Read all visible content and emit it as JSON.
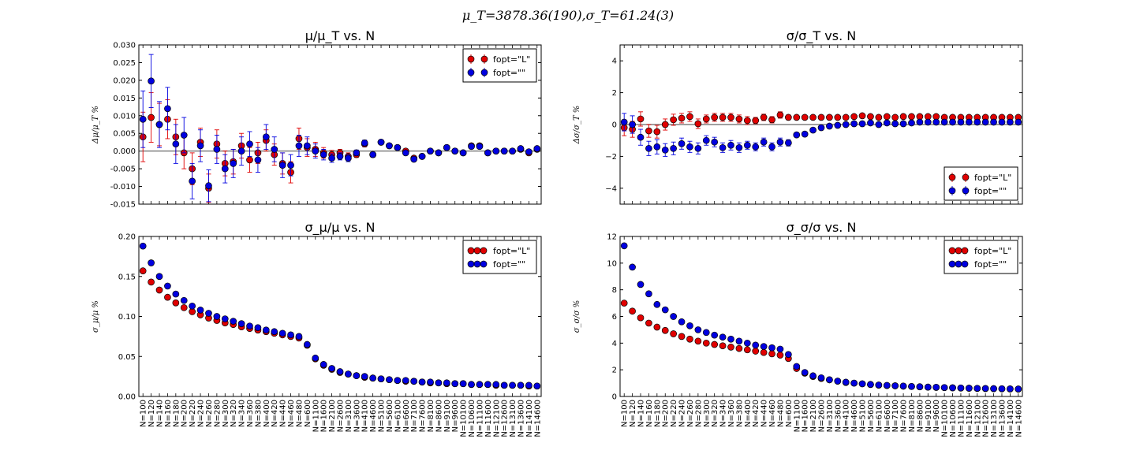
{
  "suptitle": "μ_T=3878.36(190),σ_T=61.24(3)",
  "legend_labels": {
    "L": "fopt=\"L\"",
    "E": "fopt=\"\""
  },
  "colors": {
    "L": "#e00000",
    "E": "#0000e0",
    "ref_line": "#808080"
  },
  "categories": [
    "N=100",
    "N=120",
    "N=140",
    "N=160",
    "N=180",
    "N=200",
    "N=220",
    "N=240",
    "N=260",
    "N=280",
    "N=300",
    "N=320",
    "N=340",
    "N=360",
    "N=380",
    "N=400",
    "N=420",
    "N=440",
    "N=460",
    "N=480",
    "N=600",
    "N=1100",
    "N=1600",
    "N=2100",
    "N=2600",
    "N=3100",
    "N=3600",
    "N=4100",
    "N=4600",
    "N=5100",
    "N=5600",
    "N=6100",
    "N=6600",
    "N=7100",
    "N=7600",
    "N=8100",
    "N=8600",
    "N=9100",
    "N=9600",
    "N=10100",
    "N=10600",
    "N=11100",
    "N=11600",
    "N=12100",
    "N=12600",
    "N=13100",
    "N=13600",
    "N=14100",
    "N=14600"
  ],
  "chart_data": [
    {
      "type": "scatter",
      "title": "μ/μ_T vs. N",
      "ylabel": "Δμ/μ_T %",
      "ylim": [
        -0.015,
        0.03
      ],
      "yticks": [
        "-0.015",
        "-0.010",
        "-0.005",
        "0.000",
        "0.005",
        "0.010",
        "0.015",
        "0.020",
        "0.025",
        "0.030"
      ],
      "hline": 0,
      "legend": "top-right",
      "series": [
        {
          "name": "fopt=\"L\"",
          "values": [
            0.004,
            0.0095,
            0.0075,
            0.009,
            0.004,
            -0.0005,
            -0.005,
            0.0025,
            -0.0105,
            0.002,
            -0.0035,
            -0.003,
            0.0015,
            -0.0025,
            -0.0005,
            0.003,
            -0.001,
            -0.0035,
            -0.006,
            0.0035,
            0.001,
            0.0005,
            -0.0005,
            -0.001,
            -0.0005,
            -0.0015,
            -0.001,
            0.002,
            -0.001,
            0.0025,
            0.0015,
            0.001,
            0.0,
            -0.002,
            -0.0015,
            0.0,
            -0.0005,
            0.001,
            0.0,
            -0.0005,
            0.0015,
            0.0015,
            -0.0005,
            0.0,
            0.0,
            0.0,
            0.0005,
            -0.0005,
            0.0005
          ],
          "errors": [
            0.007,
            0.007,
            0.006,
            0.0055,
            0.005,
            0.0045,
            0.0045,
            0.004,
            0.004,
            0.004,
            0.0035,
            0.0035,
            0.0035,
            0.0035,
            0.003,
            0.003,
            0.003,
            0.003,
            0.003,
            0.003,
            0.0025,
            0.002,
            0.0015,
            0.0012,
            0.001,
            0.001,
            0.0008,
            0.0008,
            0.0007,
            0.0007,
            0.0006,
            0.0006,
            0.0006,
            0.0005,
            0.0005,
            0.0005,
            0.0005,
            0.0004,
            0.0004,
            0.0004,
            0.0004,
            0.0004,
            0.0004,
            0.0004,
            0.0004,
            0.0003,
            0.0003,
            0.0003,
            0.0003
          ]
        },
        {
          "name": "fopt=\"\"",
          "values": [
            0.009,
            0.0198,
            0.0075,
            0.012,
            0.002,
            0.0045,
            -0.0085,
            0.0015,
            -0.0098,
            0.0005,
            -0.005,
            -0.0035,
            0.0,
            0.002,
            -0.0025,
            0.004,
            0.0005,
            -0.004,
            -0.004,
            0.0015,
            0.0015,
            0.0,
            -0.001,
            -0.002,
            -0.0015,
            -0.002,
            -0.0005,
            0.0023,
            -0.001,
            0.0025,
            0.0015,
            0.001,
            -0.0005,
            -0.0023,
            -0.0015,
            0.0,
            -0.0005,
            0.001,
            0.0,
            -0.0005,
            0.0013,
            0.0013,
            -0.0005,
            0.0,
            0.0,
            0.0,
            0.0007,
            -0.0002,
            0.0007
          ],
          "errors": [
            0.008,
            0.0075,
            0.0065,
            0.006,
            0.0055,
            0.005,
            0.005,
            0.0045,
            0.0045,
            0.004,
            0.004,
            0.004,
            0.004,
            0.0035,
            0.0035,
            0.0035,
            0.0035,
            0.0035,
            0.003,
            0.003,
            0.0025,
            0.002,
            0.0015,
            0.0012,
            0.001,
            0.001,
            0.0008,
            0.0008,
            0.0007,
            0.0007,
            0.0006,
            0.0006,
            0.0006,
            0.0005,
            0.0005,
            0.0005,
            0.0005,
            0.0004,
            0.0004,
            0.0004,
            0.0004,
            0.0004,
            0.0004,
            0.0004,
            0.0004,
            0.0003,
            0.0003,
            0.0003,
            0.0003
          ]
        }
      ]
    },
    {
      "type": "scatter",
      "title": "σ/σ_T vs. N",
      "ylabel": "Δσ/σ_T %",
      "ylim": [
        -5,
        5
      ],
      "yticks": [
        "−4",
        "−2",
        "0",
        "2",
        "4"
      ],
      "ytick_values": [
        -4,
        -2,
        0,
        2,
        4
      ],
      "hline": 0,
      "legend": "bottom-right",
      "series": [
        {
          "name": "fopt=\"L\"",
          "values": [
            -0.2,
            -0.3,
            0.35,
            -0.4,
            -0.45,
            0.0,
            0.3,
            0.4,
            0.5,
            0.05,
            0.35,
            0.45,
            0.45,
            0.45,
            0.35,
            0.25,
            0.25,
            0.45,
            0.3,
            0.6,
            0.45,
            0.45,
            0.45,
            0.45,
            0.45,
            0.45,
            0.45,
            0.45,
            0.5,
            0.55,
            0.5,
            0.45,
            0.5,
            0.45,
            0.5,
            0.5,
            0.5,
            0.5,
            0.5,
            0.45,
            0.45,
            0.45,
            0.45,
            0.45,
            0.45,
            0.45,
            0.45,
            0.45,
            0.45
          ],
          "errors": [
            0.5,
            0.5,
            0.45,
            0.4,
            0.4,
            0.35,
            0.35,
            0.3,
            0.3,
            0.3,
            0.25,
            0.25,
            0.25,
            0.25,
            0.25,
            0.25,
            0.2,
            0.2,
            0.2,
            0.2,
            0.15,
            0.1,
            0.1,
            0.08,
            0.07,
            0.06,
            0.05,
            0.05,
            0.05,
            0.05,
            0.04,
            0.04,
            0.04,
            0.04,
            0.04,
            0.04,
            0.03,
            0.03,
            0.03,
            0.03,
            0.03,
            0.03,
            0.03,
            0.03,
            0.03,
            0.03,
            0.03,
            0.03,
            0.03
          ]
        },
        {
          "name": "fopt=\"\"",
          "values": [
            0.15,
            0.0,
            -0.8,
            -1.5,
            -1.4,
            -1.6,
            -1.5,
            -1.2,
            -1.4,
            -1.5,
            -1.0,
            -1.1,
            -1.45,
            -1.3,
            -1.45,
            -1.3,
            -1.4,
            -1.1,
            -1.4,
            -1.1,
            -1.15,
            -0.65,
            -0.6,
            -0.35,
            -0.2,
            -0.1,
            -0.05,
            0.0,
            0.05,
            0.05,
            0.1,
            0.0,
            0.1,
            0.05,
            0.05,
            0.1,
            0.15,
            0.15,
            0.15,
            0.15,
            0.15,
            0.15,
            0.15,
            0.15,
            0.15,
            0.15,
            0.15,
            0.15,
            0.15
          ],
          "errors": [
            0.55,
            0.55,
            0.5,
            0.45,
            0.45,
            0.4,
            0.4,
            0.35,
            0.35,
            0.35,
            0.3,
            0.3,
            0.3,
            0.3,
            0.3,
            0.25,
            0.25,
            0.25,
            0.25,
            0.25,
            0.2,
            0.12,
            0.1,
            0.09,
            0.08,
            0.07,
            0.06,
            0.06,
            0.05,
            0.05,
            0.05,
            0.05,
            0.04,
            0.04,
            0.04,
            0.04,
            0.04,
            0.04,
            0.03,
            0.03,
            0.03,
            0.03,
            0.03,
            0.03,
            0.03,
            0.03,
            0.03,
            0.03,
            0.03
          ]
        }
      ]
    },
    {
      "type": "scatter",
      "title": "σ_μ/μ vs. N",
      "ylabel": "σ_μ/μ %",
      "ylim": [
        0,
        0.2
      ],
      "yticks": [
        "0.00",
        "0.05",
        "0.10",
        "0.15",
        "0.20"
      ],
      "ytick_values": [
        0,
        0.05,
        0.1,
        0.15,
        0.2
      ],
      "legend": "top-right",
      "series": [
        {
          "name": "fopt=\"L\"",
          "values": [
            0.157,
            0.143,
            0.133,
            0.124,
            0.117,
            0.111,
            0.106,
            0.102,
            0.098,
            0.095,
            0.092,
            0.09,
            0.087,
            0.085,
            0.083,
            0.081,
            0.079,
            0.077,
            0.075,
            0.073,
            0.064,
            0.047,
            0.039,
            0.034,
            0.03,
            0.028,
            0.026,
            0.024,
            0.023,
            0.022,
            0.021,
            0.02,
            0.019,
            0.019,
            0.018,
            0.017,
            0.017,
            0.016,
            0.016,
            0.016,
            0.015,
            0.015,
            0.015,
            0.014,
            0.014,
            0.014,
            0.014,
            0.013,
            0.013
          ]
        },
        {
          "name": "fopt=\"\"",
          "values": [
            0.188,
            0.167,
            0.15,
            0.138,
            0.128,
            0.12,
            0.113,
            0.108,
            0.104,
            0.1,
            0.097,
            0.094,
            0.091,
            0.088,
            0.086,
            0.083,
            0.081,
            0.079,
            0.077,
            0.075,
            0.065,
            0.048,
            0.04,
            0.035,
            0.031,
            0.028,
            0.026,
            0.025,
            0.023,
            0.022,
            0.021,
            0.02,
            0.02,
            0.019,
            0.018,
            0.018,
            0.017,
            0.017,
            0.016,
            0.016,
            0.015,
            0.015,
            0.015,
            0.015,
            0.014,
            0.014,
            0.014,
            0.014,
            0.013
          ]
        }
      ]
    },
    {
      "type": "scatter",
      "title": "σ_σ/σ vs. N",
      "ylabel": "σ_σ/σ %",
      "ylim": [
        0,
        12
      ],
      "yticks": [
        "0",
        "2",
        "4",
        "6",
        "8",
        "10",
        "12"
      ],
      "ytick_values": [
        0,
        2,
        4,
        6,
        8,
        10,
        12
      ],
      "legend": "top-right",
      "series": [
        {
          "name": "fopt=\"L\"",
          "values": [
            7.0,
            6.4,
            5.9,
            5.5,
            5.2,
            4.95,
            4.7,
            4.5,
            4.3,
            4.15,
            4.0,
            3.9,
            3.8,
            3.7,
            3.6,
            3.5,
            3.4,
            3.3,
            3.2,
            3.1,
            2.85,
            2.1,
            1.75,
            1.5,
            1.35,
            1.25,
            1.15,
            1.05,
            1.0,
            0.95,
            0.9,
            0.85,
            0.82,
            0.8,
            0.77,
            0.75,
            0.72,
            0.7,
            0.68,
            0.66,
            0.65,
            0.63,
            0.62,
            0.6,
            0.59,
            0.58,
            0.57,
            0.56,
            0.55
          ]
        },
        {
          "name": "fopt=\"\"",
          "values": [
            11.3,
            9.7,
            8.4,
            7.7,
            6.9,
            6.5,
            6.0,
            5.6,
            5.3,
            5.0,
            4.8,
            4.6,
            4.45,
            4.3,
            4.15,
            4.0,
            3.85,
            3.75,
            3.65,
            3.55,
            3.15,
            2.25,
            1.8,
            1.55,
            1.4,
            1.25,
            1.15,
            1.07,
            1.0,
            0.95,
            0.9,
            0.86,
            0.83,
            0.8,
            0.78,
            0.75,
            0.73,
            0.7,
            0.69,
            0.67,
            0.65,
            0.64,
            0.62,
            0.61,
            0.6,
            0.59,
            0.58,
            0.57,
            0.56
          ]
        }
      ]
    }
  ]
}
